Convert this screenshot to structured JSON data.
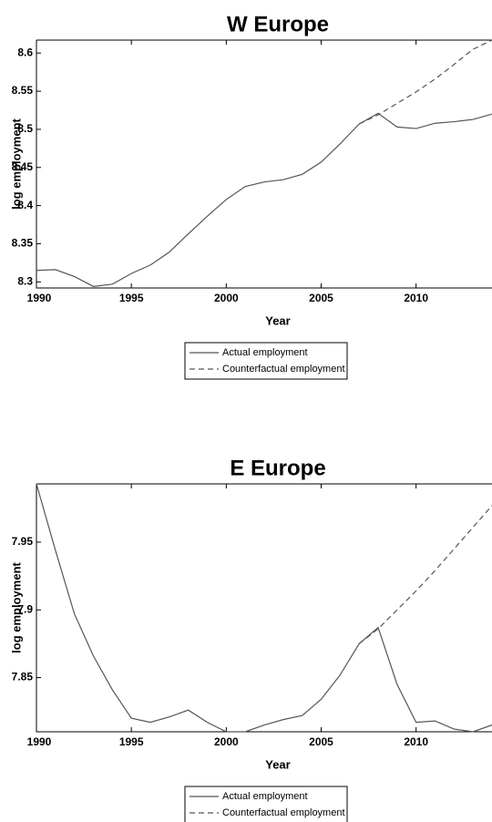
{
  "chart_data": [
    {
      "type": "line",
      "title": "W Europe",
      "xlabel": "Year",
      "ylabel": "log employment",
      "x": [
        1990,
        1991,
        1992,
        1993,
        1994,
        1995,
        1996,
        1997,
        1998,
        1999,
        2000,
        2001,
        2002,
        2003,
        2004,
        2005,
        2006,
        2007,
        2008,
        2009,
        2010,
        2011,
        2012,
        2013,
        2014
      ],
      "series": [
        {
          "name": "Actual employment",
          "color": "#555555",
          "line_style": "solid",
          "values": [
            8.315,
            8.316,
            8.307,
            8.294,
            8.297,
            8.311,
            8.322,
            8.339,
            8.363,
            8.386,
            8.408,
            8.425,
            8.431,
            8.434,
            8.441,
            8.457,
            8.481,
            8.507,
            8.521,
            8.503,
            8.501,
            8.508,
            8.51,
            8.513,
            8.52
          ]
        },
        {
          "name": "Counterfactual employment",
          "color": "#555555",
          "line_style": "dashed",
          "values": [
            null,
            null,
            null,
            null,
            null,
            null,
            null,
            null,
            null,
            null,
            null,
            null,
            null,
            null,
            null,
            null,
            null,
            8.507,
            8.519,
            8.534,
            8.549,
            8.566,
            8.585,
            8.605,
            8.617
          ]
        }
      ],
      "xlim": [
        1990,
        2014
      ],
      "xticks": [
        1990,
        1995,
        2000,
        2005,
        2010
      ],
      "ylim": [
        8.292,
        8.617
      ],
      "yticks": [
        8.3,
        8.35,
        8.4,
        8.45,
        8.5,
        8.55,
        8.6
      ],
      "grid": false,
      "legend": "below"
    },
    {
      "type": "line",
      "title": "E Europe",
      "xlabel": "Year",
      "ylabel": "log employment",
      "x": [
        1990,
        1991,
        1992,
        1993,
        1994,
        1995,
        1996,
        1997,
        1998,
        1999,
        2000,
        2001,
        2002,
        2003,
        2004,
        2005,
        2006,
        2007,
        2008,
        2009,
        2010,
        2011,
        2012,
        2013,
        2014
      ],
      "series": [
        {
          "name": "Actual employment",
          "color": "#555555",
          "line_style": "solid",
          "values": [
            7.993,
            7.944,
            7.897,
            7.866,
            7.841,
            7.82,
            7.817,
            7.821,
            7.826,
            7.817,
            7.81,
            7.81,
            7.815,
            7.819,
            7.822,
            7.834,
            7.852,
            7.875,
            7.887,
            7.845,
            7.817,
            7.818,
            7.812,
            7.81,
            7.815
          ]
        },
        {
          "name": "Counterfactual employment",
          "color": "#555555",
          "line_style": "dashed",
          "values": [
            null,
            null,
            null,
            null,
            null,
            null,
            null,
            null,
            null,
            null,
            null,
            null,
            null,
            null,
            null,
            null,
            null,
            7.875,
            7.886,
            7.9,
            7.914,
            7.929,
            7.945,
            7.961,
            7.977
          ]
        }
      ],
      "xlim": [
        1990,
        2014
      ],
      "xticks": [
        1990,
        1995,
        2000,
        2005,
        2010
      ],
      "ylim": [
        7.81,
        7.993
      ],
      "yticks": [
        7.85,
        7.9,
        7.95
      ],
      "grid": false,
      "legend": "below"
    }
  ]
}
